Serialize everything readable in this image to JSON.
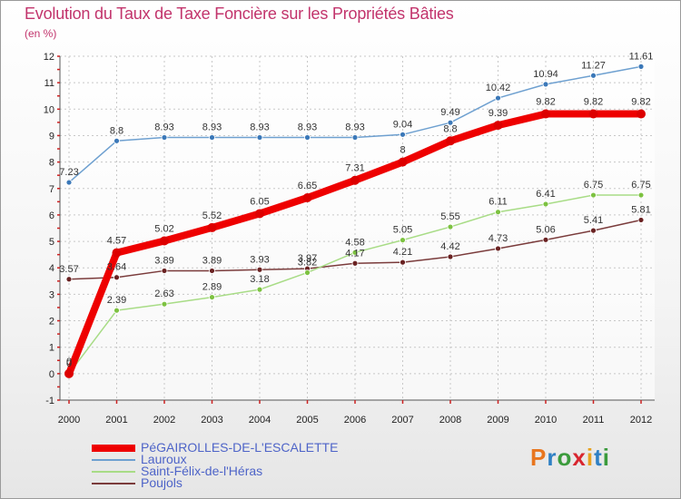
{
  "title": "Evolution du Taux de Taxe Foncière sur les Propriétés Bâties",
  "unit_label": "(en %)",
  "logo": {
    "text": "Proxiti",
    "letters": [
      {
        "ch": "P",
        "color": "#e8761f"
      },
      {
        "ch": "r",
        "color": "#2f80c4"
      },
      {
        "ch": "o",
        "color": "#3b9b3c"
      },
      {
        "ch": "x",
        "color": "#d8262f"
      },
      {
        "ch": "i",
        "color": "#e8a21f"
      },
      {
        "ch": "t",
        "color": "#2f80c4"
      },
      {
        "ch": "i",
        "color": "#3b9b3c"
      }
    ]
  },
  "chart_data": {
    "type": "line",
    "title": "Evolution du Taux de Taxe Foncière sur les Propriétés Bâties",
    "ylabel": "(en %)",
    "xlabel": "",
    "x": [
      "2000",
      "2001",
      "2002",
      "2003",
      "2004",
      "2005",
      "2006",
      "2007",
      "2008",
      "2009",
      "2010",
      "2011",
      "2012"
    ],
    "ylim": [
      -1,
      12
    ],
    "yticks": [
      "-1",
      "0",
      "1",
      "2",
      "3",
      "4",
      "5",
      "6",
      "7",
      "8",
      "9",
      "10",
      "11",
      "12"
    ],
    "grid": true,
    "series": [
      {
        "name": "PéGAIROLLES-DE-L'ESCALETTE",
        "color": "#ee0000",
        "marker": "#dd0000",
        "values": [
          0,
          4.57,
          5.02,
          5.52,
          6.05,
          6.65,
          7.31,
          8,
          8.8,
          9.39,
          9.82,
          9.82,
          9.82
        ],
        "labels": [
          "0",
          "4.57",
          "5.02",
          "5.52",
          "6.05",
          "6.65",
          "7.31",
          "8",
          "8.8",
          "9.39",
          "9.82",
          "9.82",
          "9.82"
        ]
      },
      {
        "name": "Lauroux",
        "color": "#6ea0d0",
        "marker": "#3b78b8",
        "values": [
          7.23,
          8.8,
          8.93,
          8.93,
          8.93,
          8.93,
          8.93,
          9.04,
          9.49,
          10.42,
          10.94,
          11.27,
          11.61
        ],
        "labels": [
          "7.23",
          "8.8",
          "8.93",
          "8.93",
          "8.93",
          "8.93",
          "8.93",
          "9.04",
          "9.49",
          "10.42",
          "10.94",
          "11.27",
          "11.61"
        ]
      },
      {
        "name": "Saint-Félix-de-l'Héras",
        "color": "#a8dc86",
        "marker": "#7dc241",
        "values": [
          0,
          2.39,
          2.63,
          2.89,
          3.18,
          3.82,
          4.58,
          5.05,
          5.55,
          6.11,
          6.41,
          6.75,
          6.75
        ],
        "labels": [
          "0",
          "2.39",
          "2.63",
          "2.89",
          "3.18",
          "3.82",
          "4.58",
          "5.05",
          "5.55",
          "6.11",
          "6.41",
          "6.75",
          "6.75"
        ]
      },
      {
        "name": "Poujols",
        "color": "#7a3b3b",
        "marker": "#6a2222",
        "values": [
          3.57,
          3.64,
          3.89,
          3.89,
          3.93,
          3.97,
          4.17,
          4.21,
          4.42,
          4.73,
          5.06,
          5.41,
          5.81
        ],
        "labels": [
          "3.57",
          "3.64",
          "3.89",
          "3.89",
          "3.93",
          "3.97",
          "4.17",
          "4.21",
          "4.42",
          "4.73",
          "5.06",
          "5.41",
          "5.81"
        ]
      }
    ],
    "legend_position": "bottom-left"
  }
}
